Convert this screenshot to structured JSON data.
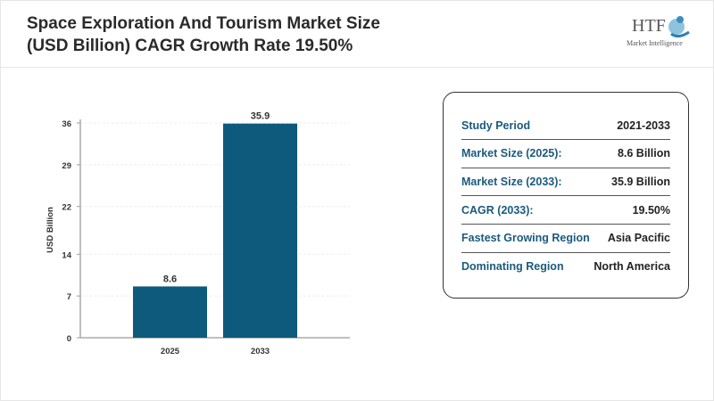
{
  "header": {
    "title_line1": "Space Exploration And Tourism Market Size",
    "title_line2": "(USD Billion) CAGR Growth Rate 19.50%",
    "logo_text": "HTF",
    "logo_subtext": "Market Intelligence"
  },
  "chart_data": {
    "type": "bar",
    "categories": [
      "2025",
      "2033"
    ],
    "values": [
      8.6,
      35.9
    ],
    "data_labels": [
      "8.6",
      "35.9"
    ],
    "title": "",
    "xlabel": "",
    "ylabel": "USD Billion",
    "ylim": [
      0,
      36
    ],
    "yticks": [
      0,
      7,
      14,
      22,
      29,
      36
    ],
    "grid": true,
    "bar_color": "#0d5a7d"
  },
  "panel": {
    "rows": [
      {
        "label": "Study Period",
        "value": "2021-2033"
      },
      {
        "label": "Market Size (2025):",
        "value": "8.6 Billion"
      },
      {
        "label": "Market Size (2033):",
        "value": "35.9 Billion"
      },
      {
        "label": "CAGR (2033):",
        "value": "19.50%"
      },
      {
        "label": "Fastest Growing Region",
        "value": "Asia Pacific"
      },
      {
        "label": "Dominating Region",
        "value": "North America"
      }
    ]
  }
}
